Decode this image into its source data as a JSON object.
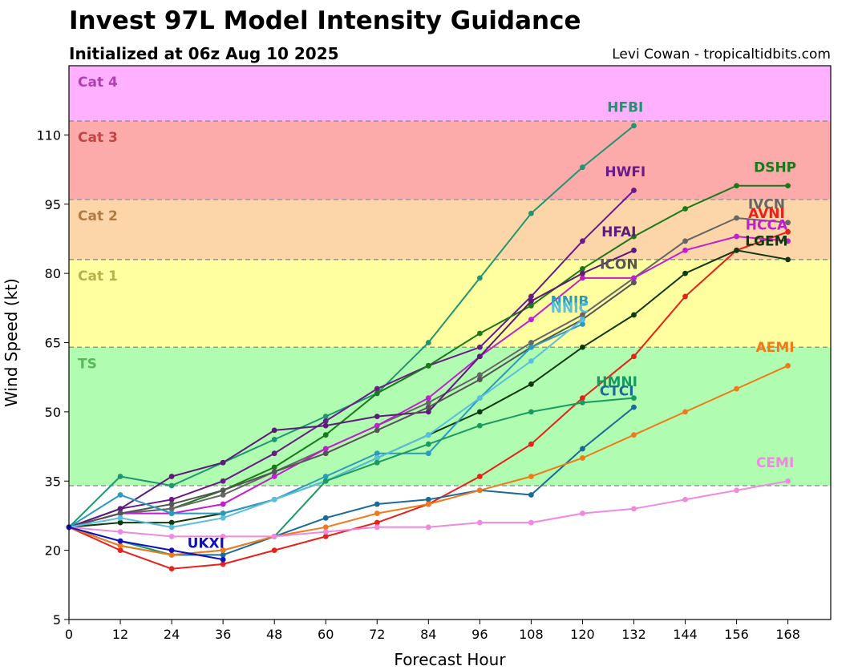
{
  "title": "Invest 97L Model Intensity Guidance",
  "subtitle": "Initialized at 06z Aug 10 2025",
  "credit": "Levi Cowan - tropicaltidbits.com",
  "chart_data": {
    "type": "line",
    "xlabel": "Forecast Hour",
    "ylabel": "Wind Speed (kt)",
    "xlim": [
      0,
      178
    ],
    "ylim": [
      5,
      125
    ],
    "xticks": [
      0,
      12,
      24,
      36,
      48,
      60,
      72,
      84,
      96,
      108,
      120,
      132,
      144,
      156,
      168
    ],
    "yticks": [
      5,
      20,
      35,
      50,
      65,
      80,
      95,
      110
    ],
    "bands": [
      {
        "label": "TS",
        "from": 34,
        "to": 64,
        "color": "#b0fcb0",
        "text_color": "#5cb85c"
      },
      {
        "label": "Cat 1",
        "from": 64,
        "to": 83,
        "color": "#ffff9f",
        "text_color": "#b5b24a"
      },
      {
        "label": "Cat 2",
        "from": 83,
        "to": 96,
        "color": "#fcd5a8",
        "text_color": "#b07b3e"
      },
      {
        "label": "Cat 3",
        "from": 96,
        "to": 113,
        "color": "#fcaaaa",
        "text_color": "#c04545"
      },
      {
        "label": "Cat 4",
        "from": 113,
        "to": 125,
        "color": "#ffb0ff",
        "text_color": "#b040b0"
      }
    ],
    "series": [
      {
        "name": "HFBI",
        "color": "#209670",
        "label_pos": [
          130,
          115
        ],
        "x": [
          0,
          12,
          24,
          36,
          48,
          60,
          72,
          84,
          96,
          108,
          120,
          132
        ],
        "y": [
          25,
          36,
          34,
          39,
          44,
          49,
          54,
          65,
          79,
          93,
          103,
          112
        ]
      },
      {
        "name": "HWFI",
        "color": "#6a1a8a",
        "label_pos": [
          130,
          101
        ],
        "x": [
          0,
          12,
          24,
          36,
          48,
          60,
          72,
          84,
          96,
          108,
          120,
          132
        ],
        "y": [
          25,
          29,
          31,
          35,
          41,
          48,
          55,
          60,
          64,
          75,
          87,
          98
        ]
      },
      {
        "name": "DSHP",
        "color": "#1a7a1a",
        "label_pos": [
          165,
          102
        ],
        "x": [
          0,
          12,
          24,
          36,
          48,
          60,
          72,
          84,
          96,
          108,
          120,
          132,
          144,
          156,
          168
        ],
        "y": [
          25,
          28,
          29,
          33,
          38,
          45,
          54,
          60,
          67,
          73,
          81,
          88,
          94,
          99,
          99
        ]
      },
      {
        "name": "IVCN",
        "color": "#666666",
        "label_pos": [
          163,
          94
        ],
        "x": [
          0,
          12,
          24,
          36,
          48,
          60,
          72,
          84,
          96,
          108,
          120,
          132,
          144,
          156,
          168
        ],
        "y": [
          25,
          28,
          29,
          32,
          37,
          42,
          47,
          52,
          58,
          65,
          71,
          79,
          87,
          92,
          91
        ]
      },
      {
        "name": "AVNI",
        "color": "#e8211a",
        "label_pos": [
          163,
          92
        ],
        "x": [
          0,
          12,
          24,
          36,
          48,
          60,
          72,
          84,
          96,
          108,
          120,
          132,
          144,
          156,
          168
        ],
        "y": [
          25,
          20,
          16,
          17,
          20,
          23,
          26,
          30,
          36,
          43,
          53,
          62,
          75,
          85,
          89
        ]
      },
      {
        "name": "HCCA",
        "color": "#c21ecf",
        "label_pos": [
          163,
          89.5
        ],
        "x": [
          0,
          12,
          24,
          36,
          48,
          60,
          72,
          84,
          96,
          108,
          120,
          132,
          144,
          156,
          168
        ],
        "y": [
          25,
          28,
          28,
          30,
          36,
          42,
          47,
          53,
          62,
          70,
          79,
          79,
          85,
          88,
          87
        ]
      },
      {
        "name": "LGEM",
        "color": "#0f3a0f",
        "label_pos": [
          163,
          86
        ],
        "x": [
          0,
          12,
          24,
          36,
          48,
          60,
          72,
          84,
          96,
          108,
          120,
          132,
          144,
          156,
          168
        ],
        "y": [
          25,
          26,
          26,
          28,
          31,
          35,
          40,
          45,
          50,
          56,
          64,
          71,
          80,
          85,
          83
        ]
      },
      {
        "name": "HFAI",
        "color": "#5c1a7a",
        "label_pos": [
          128.5,
          88
        ],
        "x": [
          0,
          12,
          24,
          36,
          48,
          60,
          72,
          84,
          96,
          108,
          120,
          132
        ],
        "y": [
          25,
          29,
          36,
          39,
          46,
          47,
          49,
          50,
          62,
          74,
          80,
          85
        ]
      },
      {
        "name": "ICON",
        "color": "#555555",
        "label_pos": [
          128.5,
          81
        ],
        "x": [
          0,
          12,
          24,
          36,
          48,
          60,
          72,
          84,
          96,
          108,
          120,
          132
        ],
        "y": [
          25,
          28,
          30,
          33,
          37,
          41,
          46,
          51,
          57,
          64,
          70,
          78
        ]
      },
      {
        "name": "NNIB",
        "color": "#2a9ac0",
        "label_pos": [
          117,
          73
        ],
        "x": [
          0,
          12,
          24,
          36,
          48,
          60,
          72,
          84,
          96,
          108,
          120
        ],
        "y": [
          25,
          32,
          28,
          28,
          31,
          36,
          41,
          41,
          53,
          64,
          69
        ]
      },
      {
        "name": "NNIC",
        "color": "#5abfdf",
        "label_pos": [
          117,
          71.5
        ],
        "x": [
          0,
          12,
          24,
          36,
          48,
          60,
          72,
          84,
          96,
          108,
          120
        ],
        "y": [
          25,
          27,
          25,
          27,
          31,
          35,
          40,
          45,
          53,
          61,
          70
        ]
      },
      {
        "name": "HMNI",
        "color": "#1a9a60",
        "label_pos": [
          128,
          55.5
        ],
        "x": [
          0,
          12,
          24,
          36,
          48,
          60,
          72,
          84,
          96,
          108,
          120,
          132
        ],
        "y": [
          25,
          22,
          19,
          20,
          23,
          35,
          39,
          43,
          47,
          50,
          52,
          53
        ]
      },
      {
        "name": "CTCI",
        "color": "#1a6a9a",
        "label_pos": [
          128,
          53.5
        ],
        "x": [
          0,
          12,
          24,
          36,
          48,
          60,
          72,
          84,
          96,
          108,
          120,
          132
        ],
        "y": [
          25,
          21,
          19,
          19,
          23,
          27,
          30,
          31,
          33,
          32,
          42,
          51
        ]
      },
      {
        "name": "AEMI",
        "color": "#f07a1a",
        "label_pos": [
          165,
          63
        ],
        "x": [
          0,
          12,
          24,
          36,
          48,
          60,
          72,
          84,
          96,
          108,
          120,
          132,
          144,
          156,
          168
        ],
        "y": [
          25,
          21,
          19,
          20,
          23,
          25,
          28,
          30,
          33,
          36,
          40,
          45,
          50,
          55,
          60
        ]
      },
      {
        "name": "CEMI",
        "color": "#f088e0",
        "label_pos": [
          165,
          38
        ],
        "x": [
          0,
          12,
          24,
          36,
          48,
          60,
          72,
          84,
          96,
          108,
          120,
          132,
          144,
          156,
          168
        ],
        "y": [
          25,
          24,
          23,
          23,
          23,
          24,
          25,
          25,
          26,
          26,
          28,
          29,
          31,
          33,
          35
        ]
      },
      {
        "name": "UKXI",
        "color": "#1010c0",
        "label_pos": [
          32,
          20.5
        ],
        "x": [
          0,
          12,
          24,
          36
        ],
        "y": [
          25,
          22,
          20,
          18
        ]
      }
    ]
  }
}
